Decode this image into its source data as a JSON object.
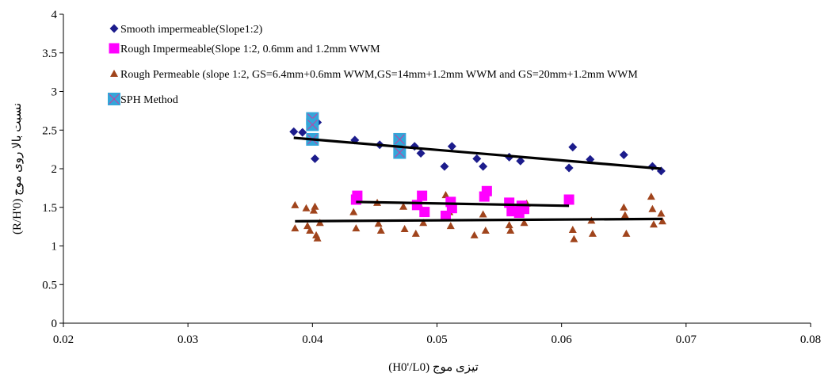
{
  "chart_data": {
    "type": "scatter",
    "title": "",
    "xlabel": "تیزی موج (H0'/L0)",
    "ylabel": "نسبت بالا روی موج (R/H'0)",
    "xlim": [
      0.02,
      0.08
    ],
    "ylim": [
      0,
      4
    ],
    "xticks": [
      0.02,
      0.03,
      0.04,
      0.05,
      0.06,
      0.07,
      0.08
    ],
    "yticks": [
      0,
      0.5,
      1,
      1.5,
      2,
      2.5,
      3,
      3.5,
      4
    ],
    "xtick_labels": [
      "0.02",
      "0.03",
      "0.04",
      "0.05",
      "0.06",
      "0.07",
      "0.08"
    ],
    "ytick_labels": [
      "0",
      "0.5",
      "1",
      "1.5",
      "2",
      "2.5",
      "3",
      "3.5",
      "4"
    ],
    "grid": false,
    "legend_position": "top-left",
    "series": [
      {
        "name": "Smooth impermeable(Slope1:2)",
        "marker": "diamond",
        "color": "#1c1c8c",
        "points": [
          [
            0.0385,
            2.48
          ],
          [
            0.0392,
            2.47
          ],
          [
            0.0402,
            2.13
          ],
          [
            0.0404,
            2.6
          ],
          [
            0.0434,
            2.37
          ],
          [
            0.0454,
            2.31
          ],
          [
            0.0482,
            2.29
          ],
          [
            0.0487,
            2.2
          ],
          [
            0.0506,
            2.03
          ],
          [
            0.0512,
            2.29
          ],
          [
            0.0532,
            2.13
          ],
          [
            0.0537,
            2.03
          ],
          [
            0.0558,
            2.15
          ],
          [
            0.0567,
            2.1
          ],
          [
            0.0606,
            2.01
          ],
          [
            0.0609,
            2.28
          ],
          [
            0.0623,
            2.12
          ],
          [
            0.065,
            2.18
          ],
          [
            0.0673,
            2.03
          ],
          [
            0.068,
            1.97
          ]
        ]
      },
      {
        "name": "Rough Impermeable(Slope 1:2, 0.6mm and 1.2mm WWM",
        "marker": "square",
        "color": "#ff00ff",
        "points": [
          [
            0.0435,
            1.6
          ],
          [
            0.0436,
            1.65
          ],
          [
            0.0484,
            1.53
          ],
          [
            0.0488,
            1.65
          ],
          [
            0.049,
            1.44
          ],
          [
            0.0507,
            1.39
          ],
          [
            0.0511,
            1.57
          ],
          [
            0.0512,
            1.49
          ],
          [
            0.0538,
            1.64
          ],
          [
            0.054,
            1.71
          ],
          [
            0.0558,
            1.56
          ],
          [
            0.056,
            1.45
          ],
          [
            0.0566,
            1.43
          ],
          [
            0.0568,
            1.52
          ],
          [
            0.057,
            1.48
          ],
          [
            0.0606,
            1.6
          ]
        ]
      },
      {
        "name": "Rough Permeable (slope 1:2, GS=6.4mm+0.6mm WWM,GS=14mm+1.2mm WWM and GS=20mm+1.2mm WWM",
        "marker": "triangle",
        "color": "#a0441c",
        "points": [
          [
            0.0386,
            1.53
          ],
          [
            0.0386,
            1.23
          ],
          [
            0.0395,
            1.49
          ],
          [
            0.0396,
            1.26
          ],
          [
            0.0398,
            1.2
          ],
          [
            0.0401,
            1.46
          ],
          [
            0.0402,
            1.51
          ],
          [
            0.0403,
            1.14
          ],
          [
            0.0404,
            1.1
          ],
          [
            0.0406,
            1.3
          ],
          [
            0.0433,
            1.44
          ],
          [
            0.0435,
            1.23
          ],
          [
            0.0452,
            1.56
          ],
          [
            0.0453,
            1.29
          ],
          [
            0.0455,
            1.2
          ],
          [
            0.0473,
            1.51
          ],
          [
            0.0474,
            1.22
          ],
          [
            0.0483,
            1.16
          ],
          [
            0.0486,
            1.53
          ],
          [
            0.0489,
            1.3
          ],
          [
            0.0507,
            1.66
          ],
          [
            0.051,
            1.44
          ],
          [
            0.0511,
            1.26
          ],
          [
            0.053,
            1.14
          ],
          [
            0.0537,
            1.41
          ],
          [
            0.0539,
            1.2
          ],
          [
            0.0558,
            1.27
          ],
          [
            0.0559,
            1.2
          ],
          [
            0.0566,
            1.52
          ],
          [
            0.057,
            1.3
          ],
          [
            0.0572,
            1.55
          ],
          [
            0.0609,
            1.21
          ],
          [
            0.061,
            1.09
          ],
          [
            0.0624,
            1.33
          ],
          [
            0.0625,
            1.16
          ],
          [
            0.065,
            1.5
          ],
          [
            0.0651,
            1.4
          ],
          [
            0.0652,
            1.16
          ],
          [
            0.0672,
            1.64
          ],
          [
            0.0673,
            1.48
          ],
          [
            0.0674,
            1.28
          ],
          [
            0.068,
            1.42
          ],
          [
            0.0681,
            1.32
          ]
        ]
      },
      {
        "name": "SPH Method",
        "marker": "square-x",
        "color": "#33a6d9",
        "points": [
          [
            0.04,
            2.65
          ],
          [
            0.04,
            2.57
          ],
          [
            0.04,
            2.38
          ],
          [
            0.047,
            2.38
          ],
          [
            0.047,
            2.21
          ]
        ]
      }
    ],
    "trendlines": [
      {
        "series": "Smooth impermeable(Slope1:2)",
        "from": [
          0.0385,
          2.4
        ],
        "to": [
          0.068,
          2.0
        ]
      },
      {
        "series": "Rough Impermeable(Slope 1:2, 0.6mm and 1.2mm WWM",
        "from": [
          0.0435,
          1.57
        ],
        "to": [
          0.0606,
          1.52
        ]
      },
      {
        "series": "Rough Permeable (slope 1:2, GS=6.4mm+0.6mm WWM,GS=14mm+1.2mm WWM and GS=20mm+1.2mm WWM",
        "from": [
          0.0386,
          1.32
        ],
        "to": [
          0.0681,
          1.35
        ]
      }
    ]
  }
}
